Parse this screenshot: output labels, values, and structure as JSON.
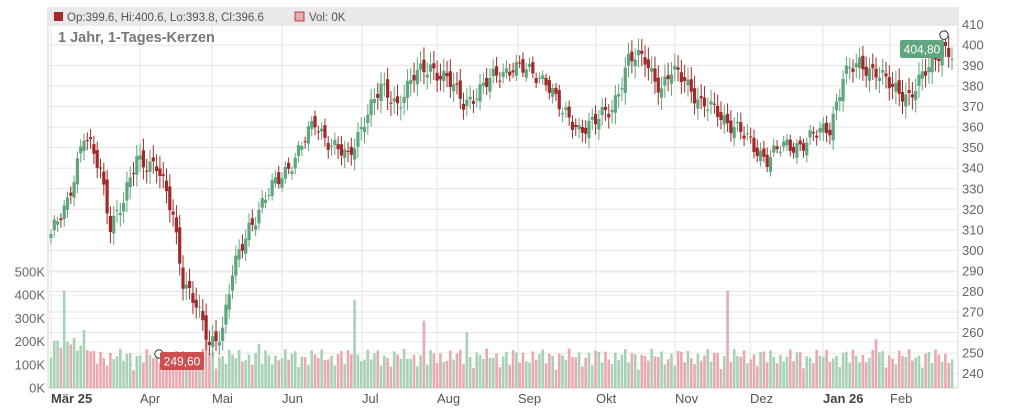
{
  "legend": {
    "ohlc_text": "Op:399.6, Hi:400.6, Lo:393.8, Cl:396.6",
    "vol_text": "Vol: 0K"
  },
  "colors": {
    "up": "#5fa57e",
    "down": "#a02a2a",
    "vol_up": "#a8d1b6",
    "vol_down": "#e8a9b0",
    "high_badge": "#5fa57e",
    "low_badge": "#cc4f4f"
  },
  "chart_data": {
    "type": "candlestick",
    "title": "1 Jahr, 1-Tages-Kerzen",
    "grid": true,
    "price_axis": {
      "side": "right",
      "ylim": [
        233,
        418
      ],
      "ticks": [
        240,
        250,
        260,
        270,
        280,
        290,
        300,
        310,
        320,
        330,
        340,
        350,
        360,
        370,
        380,
        390,
        400,
        410
      ]
    },
    "volume_axis": {
      "side": "left",
      "ylim": [
        0,
        500000
      ],
      "ticks": [
        0,
        100000,
        200000,
        300000,
        400000,
        500000
      ],
      "tick_labels": [
        "0K",
        "100K",
        "200K",
        "300K",
        "400K",
        "500K"
      ]
    },
    "months": [
      "Mär 25",
      "Apr",
      "Mai",
      "Jun",
      "Jul",
      "Aug",
      "Sep",
      "Okt",
      "Nov",
      "Dez",
      "Jan 26",
      "Feb"
    ],
    "months_bold": [
      "Mär 25",
      "Jan 26"
    ],
    "high_marker": {
      "label": "404,80",
      "value": 404.8
    },
    "low_marker": {
      "label": "249,60",
      "value": 249.6
    },
    "close_anchors": [
      [
        0,
        306
      ],
      [
        5,
        325
      ],
      [
        10,
        355
      ],
      [
        15,
        340
      ],
      [
        18,
        313
      ],
      [
        22,
        322
      ],
      [
        26,
        346
      ],
      [
        32,
        340
      ],
      [
        37,
        318
      ],
      [
        40,
        286
      ],
      [
        44,
        272
      ],
      [
        48,
        255
      ],
      [
        52,
        262
      ],
      [
        55,
        288
      ],
      [
        60,
        312
      ],
      [
        65,
        325
      ],
      [
        70,
        337
      ],
      [
        75,
        348
      ],
      [
        80,
        362
      ],
      [
        85,
        352
      ],
      [
        90,
        344
      ],
      [
        95,
        365
      ],
      [
        100,
        378
      ],
      [
        105,
        372
      ],
      [
        110,
        384
      ],
      [
        115,
        390
      ],
      [
        120,
        383
      ],
      [
        125,
        372
      ],
      [
        130,
        378
      ],
      [
        135,
        385
      ],
      [
        140,
        390
      ],
      [
        145,
        386
      ],
      [
        150,
        384
      ],
      [
        155,
        366
      ],
      [
        160,
        360
      ],
      [
        165,
        362
      ],
      [
        170,
        370
      ],
      [
        175,
        392
      ],
      [
        180,
        394
      ],
      [
        185,
        378
      ],
      [
        188,
        386
      ],
      [
        192,
        385
      ],
      [
        197,
        370
      ],
      [
        202,
        368
      ],
      [
        207,
        360
      ],
      [
        212,
        352
      ],
      [
        217,
        345
      ],
      [
        222,
        350
      ],
      [
        227,
        352
      ],
      [
        232,
        356
      ],
      [
        236,
        360
      ],
      [
        240,
        385
      ],
      [
        245,
        390
      ],
      [
        250,
        388
      ],
      [
        255,
        378
      ],
      [
        260,
        376
      ],
      [
        263,
        382
      ],
      [
        267,
        390
      ],
      [
        270,
        400
      ],
      [
        273,
        396
      ]
    ],
    "volume_spikes": [
      [
        4,
        420000
      ],
      [
        10,
        250000
      ],
      [
        47,
        300000
      ],
      [
        63,
        190000
      ],
      [
        92,
        380000
      ],
      [
        113,
        290000
      ],
      [
        126,
        240000
      ],
      [
        205,
        420000
      ],
      [
        250,
        210000
      ]
    ]
  }
}
